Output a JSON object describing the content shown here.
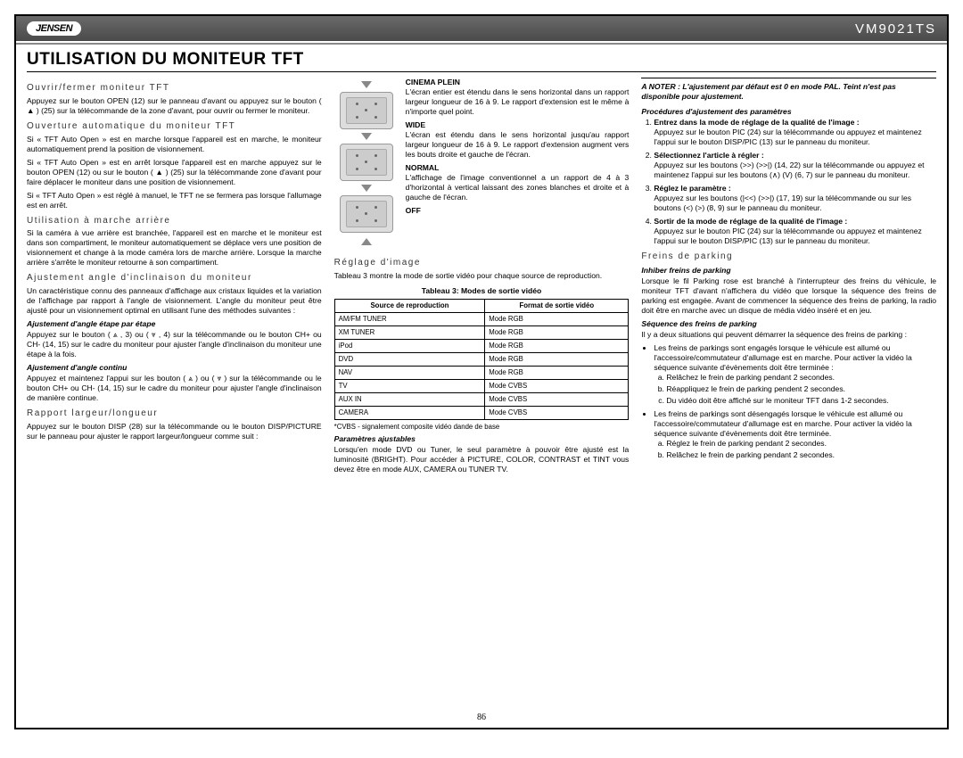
{
  "header": {
    "logo": "JENSEN",
    "model": "VM9021TS"
  },
  "title": "UTILISATION DU MONITEUR TFT",
  "page_number": "86",
  "col1": {
    "h1": "Ouvrir/fermer moniteur TFT",
    "p1": "Appuyez sur le bouton OPEN (12) sur le panneau d'avant ou appuyez sur le bouton ( ▲ ) (25) sur la télécommande de la zone d'avant, pour ouvrir ou fermer le moniteur.",
    "h2": "Ouverture automatique du moniteur TFT",
    "p2": "Si « TFT Auto Open » est en marche lorsque l'appareil est en marche, le moniteur automatiquement prend la position de visionnement.",
    "p3": "Si « TFT Auto Open » est en arrêt lorsque l'appareil est en marche appuyez sur le bouton OPEN (12) ou sur le bouton ( ▲ ) (25) sur la télécommande zone d'avant pour faire déplacer le moniteur dans une position de visionnement.",
    "p4": "Si « TFT Auto Open » est réglé à manuel, le TFT ne se fermera pas lorsque l'allumage est en arrêt.",
    "h3": "Utilisation à marche arrière",
    "p5": "Si la caméra à vue arrière est branchée, l'appareil est en marche et le moniteur est dans son compartiment, le moniteur automatiquement se déplace vers une position de visionnement et change à la mode caméra lors de marche arrière. Lorsque la marche arrière s'arrête le moniteur retourne à son compartiment.",
    "h4": "Ajustement angle d'inclinaison du moniteur",
    "p6": "Un caractéristique connu des panneaux d'affichage aux cristaux liquides et la variation de l'affichage par rapport à l'angle de visionnement. L'angle du moniteur peut être ajusté pour un visionnement optimal en utilisant l'une des méthodes suivantes :",
    "sub1": "Ajustement d'angle étape par étape",
    "p7": "Appuyez sur le bouton ( ⩓ , 3) ou ( ⩔ , 4) sur la télécommande ou le bouton CH+ ou CH- (14, 15) sur le cadre du moniteur pour ajuster l'angle d'inclinaison du moniteur une étape à la fois.",
    "sub2": "Ajustement d'angle continu",
    "p8": "Appuyez et maintenez l'appui sur les bouton ( ⩓ ) ou ( ⩔ ) sur la télécommande ou le bouton CH+ ou CH- (14, 15) sur le cadre du moniteur pour ajuster l'angle d'inclinaison de manière continue.",
    "h5": "Rapport largeur/longueur",
    "p9": "Appuyez sur le bouton DISP (28) sur la télécommande ou le bouton DISP/PICTURE sur le panneau pour ajuster le rapport largeur/longueur comme suit :"
  },
  "col2": {
    "cinema_h": "CINEMA PLEIN",
    "cinema_p": "L'écran entier est étendu dans le sens horizontal dans un rapport largeur longueur de 16 à 9. Le rapport d'extension est le même à n'importe quel point.",
    "wide_h": "WIDE",
    "wide_p": "L'écran est étendu dans le sens horizontal jusqu'au rapport largeur longueur de 16 à 9. Le rapport d'extension augment vers les bouts droite et gauche de l'écran.",
    "normal_h": "NORMAL",
    "normal_p": "L'affichage de l'image conventionnel a un rapport de 4 à 3 d'horizontal à vertical laissant des zones blanches et droite et à gauche de l'écran.",
    "off_h": "OFF",
    "h1": "Réglage d'image",
    "p1": "Tableau 3 montre la mode de sortie vidéo pour chaque source de reproduction.",
    "table_caption": "Tableau 3: Modes de sortie vidéo",
    "th1": "Source de reproduction",
    "th2": "Format de sortie vidéo",
    "rows": [
      [
        "AM/FM TUNER",
        "Mode RGB"
      ],
      [
        "XM TUNER",
        "Mode RGB"
      ],
      [
        "iPod",
        "Mode RGB"
      ],
      [
        "DVD",
        "Mode RGB"
      ],
      [
        "NAV",
        "Mode RGB"
      ],
      [
        "TV",
        "Mode CVBS"
      ],
      [
        "AUX IN",
        "Mode CVBS"
      ],
      [
        "CAMERA",
        "Mode CVBS"
      ]
    ],
    "footnote": "*CVBS - signalement composite vidéo dande de base",
    "sub1": "Paramètres ajustables",
    "p2": "Lorsqu'en mode DVD ou Tuner, le seul paramètre à pouvoir être ajusté est la luminosité (BRIGHT). Pour accéder à PICTURE, COLOR, CONTRAST et TINT vous devez être en mode AUX, CAMERA ou TUNER TV."
  },
  "col3": {
    "note": "A NOTER : L'ajustement par défaut est 0 en mode PAL. Teint n'est pas disponible pour ajustement.",
    "sub1": "Procédures d'ajustement des paramètres",
    "li1_lead": "Entrez dans la mode de réglage de la qualité de l'image :",
    "li1_body": "Appuyez sur le bouton PIC (24) sur la télécommande ou appuyez et maintenez l'appui sur le bouton DISP/PIC (13) sur le panneau du moniteur.",
    "li2_lead": "Sélectionnez l'article à régler :",
    "li2_body": "Appuyez sur les boutons (>>) (>>|) (14, 22) sur la télécommande ou appuyez et maintenez l'appui sur les boutons (∧) (V) (6, 7) sur le panneau du moniteur.",
    "li3_lead": "Réglez le paramètre :",
    "li3_body": "Appuyez sur les boutons (|<<) (>>|) (17, 19) sur la télécommande ou sur les boutons (<) (>) (8, 9) sur le panneau du moniteur.",
    "li4_lead": "Sortir de la mode de réglage de la qualité de l'image :",
    "li4_body": "Appuyez sur le bouton PIC (24) sur la télécommande ou appuyez et maintenez l'appui sur le bouton DISP/PIC (13) sur le panneau du moniteur.",
    "h1": "Freins de parking",
    "sub2": "Inhiber freins de parking",
    "p1": "Lorsque le fil Parking rose est branché à l'interrupteur des freins du véhicule, le moniteur TFT d'avant n'affichera du vidéo que lorsque la séquence des freins de parking est engagée. Avant de commencer la séquence des freins de parking, la radio doit être en marche avec un disque de média vidéo inséré et en jeu.",
    "sub3": "Séquence des freins de parking",
    "p2": "Il y a deux situations qui peuvent démarrer la séquence des freins de parking :",
    "bul1": "Les freins de parkings sont engagés lorsque le véhicule est allumé ou l'accessoire/commutateur d'allumage est en marche. Pour activer la vidéo la séquence suivante d'évènements doit être terminée :",
    "bul1a": "Relâchez le frein de parking pendant 2 secondes.",
    "bul1b": "Réappliquez le frein de parking pendent 2 secondes.",
    "bul1c": "Du vidéo doit être affiché sur le moniteur TFT dans 1-2 secondes.",
    "bul2": "Les freins de parkings sont désengagés lorsque le véhicule est allumé ou l'accessoire/commutateur d'allumage est en marche. Pour activer la vidéo la séquence suivante d'évènements doit être terminée.",
    "bul2a": "Réglez le frein de parking pendant 2 secondes.",
    "bul2b": "Relâchez le frein de parking pendant 2 secondes."
  }
}
